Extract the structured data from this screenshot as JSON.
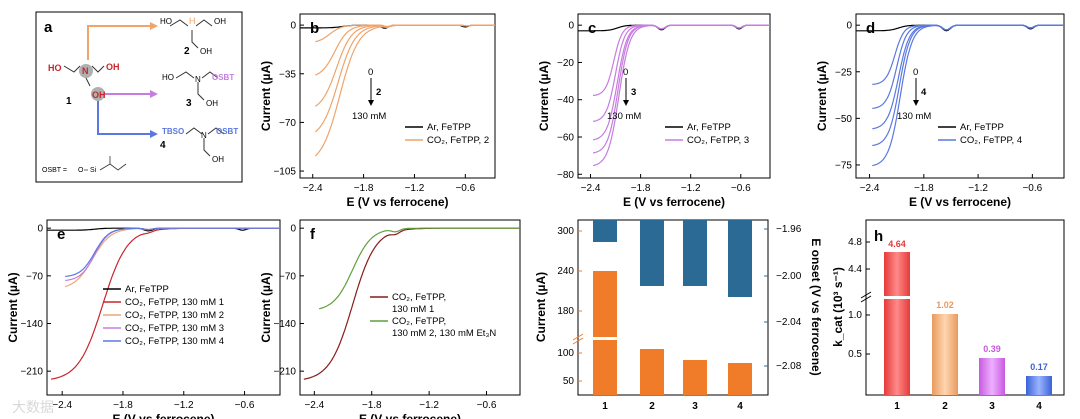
{
  "colors": {
    "ar": "#000000",
    "c2": "#f0a36a",
    "c3": "#c77ce0",
    "c4": "#5a78e0",
    "c1": "#c8262e",
    "e_ar": "#000000",
    "e_c1": "#c8262e",
    "e_c2": "#e9a97a",
    "e_c3": "#c77ce0",
    "e_c4": "#5a78e0",
    "f_a": "#8b1a1a",
    "f_b": "#5fa03a",
    "g_current": "#f07c2a",
    "g_eonset": "#2c6a96",
    "h1": "#e53a3a",
    "h2": "#e89a5e",
    "h3": "#c65ae0",
    "h4": "#3a63d8"
  },
  "panel_a": {
    "label": "a",
    "labels": {
      "c1": "1",
      "c2": "2",
      "c3": "3",
      "c4": "4",
      "ho": "HO",
      "oh": "OH",
      "n": "N",
      "osbt": "OSBT",
      "tbso": "TBSO",
      "otbs": "OSBT =",
      "osi": "O",
      "si": "Si",
      "h": "H"
    }
  },
  "chart_data": [
    {
      "id": "b",
      "type": "line",
      "panel_label": "b",
      "xlabel": "E (V vs ferrocene)",
      "ylabel": "Current (µA)",
      "xlim": [
        -2.55,
        -0.25
      ],
      "ylim": [
        -110,
        8
      ],
      "xticks": [
        -2.4,
        -1.8,
        -1.2,
        -0.6
      ],
      "xtick_labels": [
        "−2.4",
        "−1.8",
        "−1.2",
        "−0.6"
      ],
      "yticks": [
        0,
        -35,
        -70,
        -105
      ],
      "ytick_labels": [
        "0",
        "−35",
        "−70",
        "−105"
      ],
      "series": [
        {
          "name": "Ar, FeTPP",
          "color_key": "ar",
          "jmin": -2,
          "eon": -2.05,
          "w": 0.06,
          "bump": [
            [
              -1.55,
              -2.2,
              0.06
            ],
            [
              -0.6,
              -1.3,
              0.05
            ]
          ],
          "x0": -2.55
        },
        {
          "color_key": "c2",
          "jmin": -13,
          "eon": -2.2,
          "w": 0.07,
          "bump": [
            [
              -1.52,
              -1.0,
              0.05
            ],
            [
              -0.58,
              -0.6,
              0.05
            ]
          ],
          "x0": -2.38
        },
        {
          "color_key": "c2",
          "jmin": -38,
          "eon": -2.14,
          "w": 0.08,
          "bump": [
            [
              -1.52,
              -1.0,
              0.05
            ],
            [
              -0.58,
              -0.6,
              0.05
            ]
          ],
          "x0": -2.38
        },
        {
          "color_key": "c2",
          "jmin": -62,
          "eon": -2.12,
          "w": 0.09,
          "bump": [
            [
              -1.52,
              -1.0,
              0.05
            ],
            [
              -0.58,
              -0.6,
              0.05
            ]
          ],
          "x0": -2.38
        },
        {
          "color_key": "c2",
          "jmin": -82,
          "eon": -2.1,
          "w": 0.1,
          "bump": [
            [
              -1.52,
              -1.0,
              0.05
            ],
            [
              -0.58,
              -0.6,
              0.05
            ]
          ],
          "x0": -2.38
        },
        {
          "name": "CO2, FeTPP, 2",
          "color_key": "c2",
          "jmin": -101,
          "eon": -2.08,
          "w": 0.11,
          "bump": [
            [
              -1.52,
              -1.0,
              0.05
            ],
            [
              -0.58,
              -0.6,
              0.05
            ]
          ],
          "x0": -2.38
        }
      ],
      "legend": [
        "Ar, FeTPP",
        "CO₂, FeTPP, 2"
      ],
      "annotation": {
        "from": "0",
        "to": "130 mM",
        "compound": "2"
      }
    },
    {
      "id": "c",
      "type": "line",
      "panel_label": "c",
      "xlabel": "E (V vs ferrocene)",
      "ylabel": "Current (µA)",
      "xlim": [
        -2.55,
        -0.25
      ],
      "ylim": [
        -82,
        6
      ],
      "xticks": [
        -2.4,
        -1.8,
        -1.2,
        -0.6
      ],
      "xtick_labels": [
        "−2.4",
        "−1.8",
        "−1.2",
        "−0.6"
      ],
      "yticks": [
        0,
        -20,
        -40,
        -60,
        -80
      ],
      "ytick_labels": [
        "0",
        "−20",
        "−40",
        "−60",
        "−80"
      ],
      "series": [
        {
          "name": "Ar, FeTPP",
          "color_key": "ar",
          "jmin": -3,
          "eon": -2.08,
          "w": 0.05,
          "bump": [
            [
              -1.55,
              -2.5,
              0.06
            ],
            [
              -0.62,
              -2.0,
              0.05
            ]
          ],
          "x0": -2.55
        },
        {
          "color_key": "c3",
          "jmin": -38,
          "eon": -2.12,
          "w": 0.05,
          "bump": [
            [
              -1.55,
              -2.0,
              0.06
            ],
            [
              -0.62,
              -1.5,
              0.05
            ]
          ],
          "x0": -2.38
        },
        {
          "color_key": "c3",
          "jmin": -52,
          "eon": -2.1,
          "w": 0.055,
          "bump": [
            [
              -1.55,
              -2.0,
              0.06
            ],
            [
              -0.62,
              -1.5,
              0.05
            ]
          ],
          "x0": -2.38
        },
        {
          "color_key": "c3",
          "jmin": -62,
          "eon": -2.08,
          "w": 0.06,
          "bump": [
            [
              -1.55,
              -2.0,
              0.06
            ],
            [
              -0.62,
              -1.5,
              0.05
            ]
          ],
          "x0": -2.38
        },
        {
          "color_key": "c3",
          "jmin": -69,
          "eon": -2.07,
          "w": 0.06,
          "bump": [
            [
              -1.55,
              -2.0,
              0.06
            ],
            [
              -0.62,
              -1.5,
              0.05
            ]
          ],
          "x0": -2.38
        },
        {
          "name": "CO2, FeTPP, 3",
          "color_key": "c3",
          "jmin": -76,
          "eon": -2.06,
          "w": 0.065,
          "bump": [
            [
              -1.55,
              -2.0,
              0.06
            ],
            [
              -0.62,
              -1.5,
              0.05
            ]
          ],
          "x0": -2.38
        }
      ],
      "legend": [
        "Ar, FeTPP",
        "CO₂, FeTPP, 3"
      ],
      "annotation": {
        "from": "0",
        "to": "130 mM",
        "compound": "3"
      }
    },
    {
      "id": "d",
      "type": "line",
      "panel_label": "d",
      "xlabel": "E (V vs ferrocene)",
      "ylabel": "Current (µA)",
      "xlim": [
        -2.55,
        -0.25
      ],
      "ylim": [
        -82,
        6
      ],
      "xticks": [
        -2.4,
        -1.8,
        -1.2,
        -0.6
      ],
      "xtick_labels": [
        "−2.4",
        "−1.8",
        "−1.2",
        "−0.6"
      ],
      "yticks": [
        0,
        -25,
        -50,
        -75
      ],
      "ytick_labels": [
        "0",
        "−25",
        "−50",
        "−75"
      ],
      "series": [
        {
          "name": "Ar, FeTPP",
          "color_key": "ar",
          "jmin": -3,
          "eon": -2.08,
          "w": 0.05,
          "bump": [
            [
              -1.55,
              -3.0,
              0.06
            ],
            [
              -0.62,
              -2.0,
              0.05
            ]
          ],
          "x0": -2.55
        },
        {
          "color_key": "c4",
          "jmin": -32,
          "eon": -2.12,
          "w": 0.05,
          "bump": [
            [
              -1.55,
              -2.5,
              0.06
            ],
            [
              -0.62,
              -1.5,
              0.05
            ]
          ],
          "x0": -2.38
        },
        {
          "color_key": "c4",
          "jmin": -45,
          "eon": -2.1,
          "w": 0.055,
          "bump": [
            [
              -1.55,
              -2.5,
              0.06
            ],
            [
              -0.62,
              -1.5,
              0.05
            ]
          ],
          "x0": -2.38
        },
        {
          "color_key": "c4",
          "jmin": -56,
          "eon": -2.08,
          "w": 0.06,
          "bump": [
            [
              -1.55,
              -2.5,
              0.06
            ],
            [
              -0.62,
              -1.5,
              0.05
            ]
          ],
          "x0": -2.38
        },
        {
          "color_key": "c4",
          "jmin": -65,
          "eon": -2.07,
          "w": 0.06,
          "bump": [
            [
              -1.55,
              -2.5,
              0.06
            ],
            [
              -0.62,
              -1.5,
              0.05
            ]
          ],
          "x0": -2.38
        },
        {
          "name": "CO2, FeTPP, 4",
          "color_key": "c4",
          "jmin": -76,
          "eon": -2.06,
          "w": 0.065,
          "bump": [
            [
              -1.55,
              -2.5,
              0.06
            ],
            [
              -0.62,
              -1.5,
              0.05
            ]
          ],
          "x0": -2.38
        }
      ],
      "legend": [
        "Ar, FeTPP",
        "CO₂, FeTPP, 4"
      ],
      "annotation": {
        "from": "0",
        "to": "130 mM",
        "compound": "4"
      }
    },
    {
      "id": "e",
      "type": "line",
      "panel_label": "e",
      "xlabel": "E (V vs ferrocene)",
      "ylabel": "Current (µA)",
      "xlim": [
        -2.55,
        -0.25
      ],
      "ylim": [
        -245,
        12
      ],
      "xticks": [
        -2.4,
        -1.8,
        -1.2,
        -0.6
      ],
      "xtick_labels": [
        "−2.4",
        "−1.8",
        "−1.2",
        "−0.6"
      ],
      "yticks": [
        0,
        -70,
        -140,
        -210
      ],
      "ytick_labels": [
        "0",
        "−70",
        "−140",
        "−210"
      ],
      "series": [
        {
          "name": "Ar, FeTPP",
          "color_key": "e_ar",
          "jmin": -3,
          "eon": -2.08,
          "w": 0.05,
          "bump": [
            [
              -1.55,
              -4,
              0.06
            ],
            [
              -0.62,
              -3,
              0.05
            ]
          ],
          "x0": -2.55
        },
        {
          "name": "CO2, FeTPP, 130 mM 1",
          "color_key": "e_c1",
          "jmin": -225,
          "eon": -2.0,
          "w": 0.12,
          "bump": [
            [
              -1.55,
              -2,
              0.06
            ]
          ],
          "x0": -2.52
        },
        {
          "name": "CO2, FeTPP, 130 mM 2",
          "color_key": "e_c2",
          "jmin": -90,
          "eon": -2.1,
          "w": 0.09,
          "bump": [
            [
              -1.55,
              -2,
              0.06
            ]
          ],
          "x0": -2.38
        },
        {
          "name": "CO2, FeTPP, 130 mM 3",
          "color_key": "e_c3",
          "jmin": -78,
          "eon": -2.08,
          "w": 0.07,
          "bump": [
            [
              -1.55,
              -2,
              0.06
            ]
          ],
          "x0": -2.38
        },
        {
          "name": "CO2, FeTPP, 130 mM 4",
          "color_key": "e_c4",
          "jmin": -72,
          "eon": -2.08,
          "w": 0.07,
          "bump": [
            [
              -1.55,
              -2,
              0.06
            ]
          ],
          "x0": -2.38
        }
      ],
      "legend": [
        "Ar, FeTPP",
        "CO₂, FeTPP, 130 mM 1",
        "CO₂, FeTPP, 130 mM 2",
        "CO₂, FeTPP, 130 mM 3",
        "CO₂, FeTPP, 130 mM 4"
      ]
    },
    {
      "id": "f",
      "type": "line",
      "panel_label": "f",
      "xlabel": "E (V vs ferrocene)",
      "ylabel": "Current (µA)",
      "xlim": [
        -2.55,
        -0.25
      ],
      "ylim": [
        -245,
        12
      ],
      "xticks": [
        -2.4,
        -1.8,
        -1.2,
        -0.6
      ],
      "xtick_labels": [
        "−2.4",
        "−1.8",
        "−1.2",
        "−0.6"
      ],
      "yticks": [
        0,
        -70,
        -140,
        -210
      ],
      "ytick_labels": [
        "0",
        "−70",
        "−140",
        "−210"
      ],
      "series": [
        {
          "name": "CO2, FeTPP, 130 mM 1",
          "color_key": "f_a",
          "jmin": -225,
          "eon": -2.0,
          "w": 0.12,
          "bump": [
            [
              -1.55,
              -4,
              0.06
            ]
          ],
          "x0": -2.52
        },
        {
          "name": "CO2, FeTPP, 130 mM 2, 130 mM Et3N",
          "color_key": "f_b",
          "jmin": -122,
          "eon": -2.0,
          "w": 0.1,
          "bump": [
            [
              -1.55,
              -4,
              0.06
            ]
          ],
          "x0": -2.36
        }
      ],
      "legend": [
        "CO₂, FeTPP,",
        "130 mM 1",
        "CO₂, FeTPP,",
        "130 mM 2, 130 mM Et₃N"
      ]
    },
    {
      "id": "g",
      "type": "bar",
      "panel_label": "g",
      "categories": [
        "1",
        "2",
        "3",
        "4"
      ],
      "series": [
        {
          "name": "Current (µA)",
          "values": [
            235,
            97,
            80,
            76
          ]
        },
        {
          "name": "E onset (V vs ferrocene)",
          "values": [
            -1.979,
            -2.006,
            -2.006,
            -2.01
          ]
        }
      ],
      "ylabel_left": "Current (µA)",
      "ylabel_right": "E onset (V vs ferrocene)",
      "yticks_left": [
        "300",
        "240",
        "180",
        "100",
        "50"
      ],
      "yticks_right": [
        "−1.96",
        "−2.00",
        "−2.04",
        "−2.08"
      ]
    },
    {
      "id": "h",
      "type": "bar",
      "panel_label": "h",
      "categories": [
        "1",
        "2",
        "3",
        "4"
      ],
      "values": [
        4.64,
        1.02,
        0.39,
        0.17
      ],
      "value_labels": [
        "4.64",
        "1.02",
        "0.39",
        "0.17"
      ],
      "ylabel": "k_cat (10³ s⁻¹)",
      "yticks_upper": [
        "4.8",
        "4.4"
      ],
      "yticks_lower": [
        "1.0",
        "0.5"
      ]
    }
  ],
  "watermark": "大数据"
}
